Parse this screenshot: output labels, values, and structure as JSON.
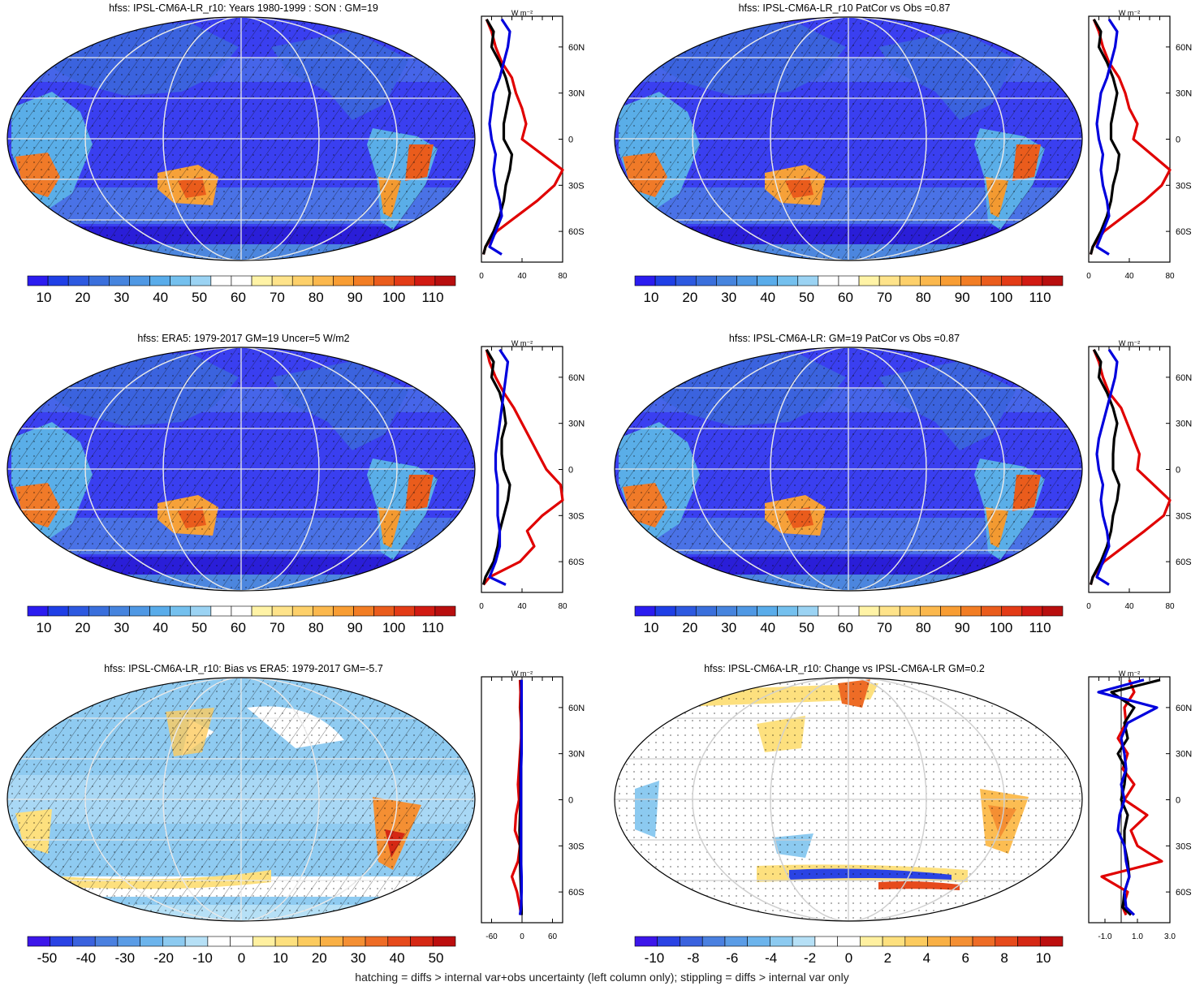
{
  "footer": "hatching = diffs > internal var+obs uncertainty (left column only); stippling = diffs > internal var only",
  "colors": {
    "full": [
      "#2b1cf0",
      "#1f3fe6",
      "#2d59e0",
      "#3a6fdc",
      "#4684de",
      "#4f98e4",
      "#59acea",
      "#74c0ee",
      "#9bd3f3",
      "#ffffff",
      "#ffffff",
      "#fff3a6",
      "#fee38a",
      "#fdd06a",
      "#fbb84d",
      "#f89d33",
      "#f27d24",
      "#ea5c1c",
      "#e33b16",
      "#d11a12",
      "#b80e0e"
    ],
    "diff": [
      "#3c16ea",
      "#2a43e4",
      "#3a62de",
      "#4a80e0",
      "#5a9ce6",
      "#6cb4ec",
      "#8ccaf0",
      "#b6e0f6",
      "#ffffff",
      "#ffffff",
      "#fff0a0",
      "#fde07e",
      "#fccb5e",
      "#f9b045",
      "#f48f33",
      "#ee6c26",
      "#e64a1c",
      "#d52814",
      "#bc0e0e"
    ]
  },
  "panels": [
    {
      "title": "hfss: IPSL-CM6A-LR_r10: Years 1980-1999 : SON : GM=19",
      "map_kind": "full",
      "colorbar": {
        "labels": [
          "10",
          "20",
          "30",
          "40",
          "50",
          "60",
          "70",
          "80",
          "90",
          "100",
          "110"
        ],
        "scheme": "full"
      },
      "profile": {
        "unit": "W m⁻²",
        "xticks": [
          "0",
          "40",
          "80"
        ],
        "xlim": [
          0,
          80
        ],
        "lat_ticks": [
          "60N",
          "30N",
          "0",
          "30S",
          "60S"
        ]
      }
    },
    {
      "title": "hfss: IPSL-CM6A-LR_r10 PatCor vs Obs =0.87",
      "map_kind": "full",
      "colorbar": {
        "labels": [
          "10",
          "20",
          "30",
          "40",
          "50",
          "60",
          "70",
          "80",
          "90",
          "100",
          "110"
        ],
        "scheme": "full"
      },
      "profile": {
        "unit": "W m⁻²",
        "xticks": [
          "0",
          "40",
          "80"
        ],
        "xlim": [
          0,
          80
        ],
        "lat_ticks": [
          "60N",
          "30N",
          "0",
          "30S",
          "60S"
        ]
      }
    },
    {
      "title": "hfss: ERA5: 1979-2017 GM=19 Uncer=5 W/m2",
      "map_kind": "full",
      "colorbar": {
        "labels": [
          "10",
          "20",
          "30",
          "40",
          "50",
          "60",
          "70",
          "80",
          "90",
          "100",
          "110"
        ],
        "scheme": "full"
      },
      "profile": {
        "unit": "W m⁻²",
        "xticks": [
          "0",
          "40",
          "80"
        ],
        "xlim": [
          0,
          80
        ],
        "lat_ticks": [
          "60N",
          "30N",
          "0",
          "30S",
          "60S"
        ]
      }
    },
    {
      "title": "hfss: IPSL-CM6A-LR: GM=19 PatCor vs Obs =0.87",
      "map_kind": "full",
      "colorbar": {
        "labels": [
          "10",
          "20",
          "30",
          "40",
          "50",
          "60",
          "70",
          "80",
          "90",
          "100",
          "110"
        ],
        "scheme": "full"
      },
      "profile": {
        "unit": "W m⁻²",
        "xticks": [
          "0",
          "40",
          "80"
        ],
        "xlim": [
          0,
          80
        ],
        "lat_ticks": [
          "60N",
          "30N",
          "0",
          "30S",
          "60S"
        ]
      }
    },
    {
      "title": "hfss: IPSL-CM6A-LR_r10: Bias vs ERA5: 1979-2017  GM=-5.7",
      "map_kind": "bias",
      "colorbar": {
        "labels": [
          "-50",
          "-40",
          "-30",
          "-20",
          "-10",
          "0",
          "10",
          "20",
          "30",
          "40",
          "50"
        ],
        "scheme": "diff"
      },
      "profile": {
        "unit": "W m⁻²",
        "xticks": [
          "-60",
          "0",
          "60"
        ],
        "xlim": [
          -80,
          80
        ],
        "lat_ticks": [
          "60N",
          "30N",
          "0",
          "30S",
          "60S"
        ]
      }
    },
    {
      "title": "hfss: IPSL-CM6A-LR_r10: Change vs IPSL-CM6A-LR GM=0.2",
      "map_kind": "change",
      "colorbar": {
        "labels": [
          "-10",
          "-8",
          "-6",
          "-4",
          "-2",
          "0",
          "2",
          "4",
          "6",
          "8",
          "10"
        ],
        "scheme": "diff"
      },
      "profile": {
        "unit": "W m⁻²",
        "xticks": [
          "-1.0",
          "1.0",
          "3.0"
        ],
        "xlim": [
          -2,
          3
        ],
        "lat_ticks": [
          "60N",
          "30N",
          "0",
          "30S",
          "60S"
        ]
      }
    }
  ],
  "chart_data": [
    {
      "type": "line",
      "title": "hfss: IPSL-CM6A-LR_r10: Years 1980-1999 : SON : GM=19",
      "xlabel": "W m-2",
      "ylabel": "",
      "xlim": [
        0,
        80
      ],
      "ylim": [
        -80,
        80
      ],
      "y": [
        78,
        70,
        60,
        50,
        40,
        30,
        20,
        10,
        0,
        -10,
        -20,
        -30,
        -40,
        -50,
        -60,
        -70,
        -75
      ],
      "series": [
        {
          "color": "#e00000",
          "values": [
            5,
            10,
            14,
            20,
            30,
            34,
            40,
            44,
            40,
            60,
            80,
            72,
            55,
            35,
            15,
            4,
            2
          ]
        },
        {
          "color": "#000000",
          "values": [
            5,
            12,
            10,
            18,
            24,
            28,
            25,
            22,
            22,
            30,
            28,
            24,
            22,
            18,
            12,
            4,
            2
          ]
        },
        {
          "color": "#0000dd",
          "values": [
            20,
            28,
            26,
            22,
            18,
            12,
            10,
            8,
            10,
            14,
            12,
            14,
            18,
            20,
            14,
            8,
            20
          ]
        }
      ]
    },
    {
      "type": "line",
      "title": "hfss: IPSL-CM6A-LR_r10 PatCor vs Obs =0.87",
      "xlabel": "W m-2",
      "ylabel": "",
      "xlim": [
        0,
        80
      ],
      "ylim": [
        -80,
        80
      ],
      "y": [
        78,
        70,
        60,
        50,
        40,
        30,
        20,
        10,
        0,
        -10,
        -20,
        -30,
        -40,
        -50,
        -60,
        -70,
        -75
      ],
      "series": [
        {
          "color": "#e00000",
          "values": [
            5,
            10,
            14,
            20,
            30,
            36,
            40,
            48,
            44,
            62,
            80,
            72,
            55,
            35,
            15,
            4,
            2
          ]
        },
        {
          "color": "#000000",
          "values": [
            5,
            12,
            10,
            18,
            24,
            28,
            25,
            22,
            22,
            30,
            28,
            24,
            22,
            18,
            12,
            4,
            2
          ]
        },
        {
          "color": "#0000dd",
          "values": [
            20,
            28,
            26,
            22,
            18,
            12,
            10,
            8,
            10,
            14,
            12,
            14,
            18,
            20,
            14,
            8,
            20
          ]
        }
      ]
    },
    {
      "type": "line",
      "title": "hfss: ERA5: 1979-2017 GM=19 Uncer=5 W/m2",
      "xlabel": "W m-2",
      "ylabel": "",
      "xlim": [
        0,
        80
      ],
      "ylim": [
        -80,
        80
      ],
      "y": [
        78,
        70,
        60,
        50,
        40,
        30,
        20,
        10,
        0,
        -10,
        -20,
        -30,
        -40,
        -50,
        -60,
        -70,
        -75
      ],
      "series": [
        {
          "color": "#e00000",
          "values": [
            5,
            8,
            14,
            22,
            32,
            40,
            48,
            56,
            64,
            78,
            80,
            60,
            45,
            52,
            38,
            8,
            2
          ]
        },
        {
          "color": "#000000",
          "values": [
            5,
            12,
            10,
            18,
            22,
            24,
            20,
            20,
            22,
            28,
            26,
            22,
            18,
            16,
            12,
            4,
            2
          ]
        },
        {
          "color": "#0000dd",
          "values": [
            18,
            26,
            24,
            22,
            20,
            18,
            16,
            14,
            14,
            16,
            16,
            16,
            18,
            18,
            14,
            8,
            24
          ]
        }
      ]
    },
    {
      "type": "line",
      "title": "hfss: IPSL-CM6A-LR: GM=19 PatCor vs Obs =0.87",
      "xlabel": "W m-2",
      "ylabel": "",
      "xlim": [
        0,
        80
      ],
      "ylim": [
        -80,
        80
      ],
      "y": [
        78,
        70,
        60,
        50,
        40,
        30,
        20,
        10,
        0,
        -10,
        -20,
        -30,
        -40,
        -50,
        -60,
        -70,
        -75
      ],
      "series": [
        {
          "color": "#e00000",
          "values": [
            5,
            10,
            14,
            20,
            32,
            38,
            44,
            50,
            48,
            64,
            80,
            74,
            55,
            35,
            15,
            4,
            2
          ]
        },
        {
          "color": "#000000",
          "values": [
            5,
            12,
            10,
            18,
            24,
            28,
            25,
            24,
            24,
            30,
            28,
            24,
            22,
            18,
            12,
            4,
            2
          ]
        },
        {
          "color": "#0000dd",
          "values": [
            20,
            28,
            26,
            22,
            18,
            14,
            10,
            8,
            10,
            14,
            12,
            14,
            18,
            20,
            14,
            8,
            20
          ]
        }
      ]
    },
    {
      "type": "line",
      "title": "hfss: IPSL-CM6A-LR_r10: Bias vs ERA5: 1979-2017  GM=-5.7",
      "xlabel": "W m-2",
      "ylabel": "",
      "xlim": [
        -80,
        80
      ],
      "ylim": [
        -80,
        80
      ],
      "y": [
        78,
        70,
        60,
        50,
        40,
        30,
        20,
        10,
        0,
        -10,
        -20,
        -30,
        -40,
        -50,
        -60,
        -70,
        -75
      ],
      "series": [
        {
          "color": "#e00000",
          "values": [
            -4,
            -3,
            -4,
            -2,
            -2,
            -4,
            -6,
            -8,
            -6,
            -12,
            -14,
            -4,
            -8,
            -20,
            -10,
            -4,
            -2
          ]
        },
        {
          "color": "#000000",
          "values": [
            -2,
            -1,
            -2,
            -1,
            -1,
            -2,
            -3,
            -3,
            -3,
            -4,
            -5,
            -4,
            -4,
            -3,
            -2,
            -1,
            -1
          ]
        },
        {
          "color": "#0000dd",
          "values": [
            -1,
            -1,
            -1,
            -1,
            -1,
            -1,
            -2,
            -2,
            -2,
            -2,
            -2,
            -2,
            -2,
            -1,
            -1,
            -2,
            -4
          ]
        }
      ]
    },
    {
      "type": "line",
      "title": "hfss: IPSL-CM6A-LR_r10: Change vs IPSL-CM6A-LR GM=0.2",
      "xlabel": "W m-2",
      "ylabel": "",
      "xlim": [
        -2,
        3
      ],
      "ylim": [
        -80,
        80
      ],
      "y": [
        78,
        70,
        60,
        50,
        40,
        30,
        20,
        10,
        0,
        -10,
        -20,
        -30,
        -40,
        -50,
        -60,
        -70,
        -75
      ],
      "series": [
        {
          "color": "#e00000",
          "values": [
            0.5,
            0.8,
            0.2,
            0.3,
            -0.2,
            0.4,
            0.1,
            0.8,
            0.2,
            1.6,
            0.6,
            1.0,
            2.5,
            -1.2,
            0.4,
            0.1,
            0.3
          ]
        },
        {
          "color": "#000000",
          "values": [
            2.4,
            -0.6,
            0.8,
            0.2,
            0.4,
            -0.2,
            0.3,
            0.2,
            0.0,
            0.4,
            0.2,
            0.2,
            0.4,
            0.5,
            0.2,
            0.1,
            0.6
          ]
        },
        {
          "color": "#0000dd",
          "values": [
            1.4,
            -1.4,
            2.2,
            0.4,
            0.0,
            0.2,
            0.3,
            0.0,
            0.2,
            -0.1,
            -0.2,
            0.2,
            0.3,
            0.5,
            0.2,
            0.3,
            0.8
          ]
        }
      ]
    }
  ]
}
